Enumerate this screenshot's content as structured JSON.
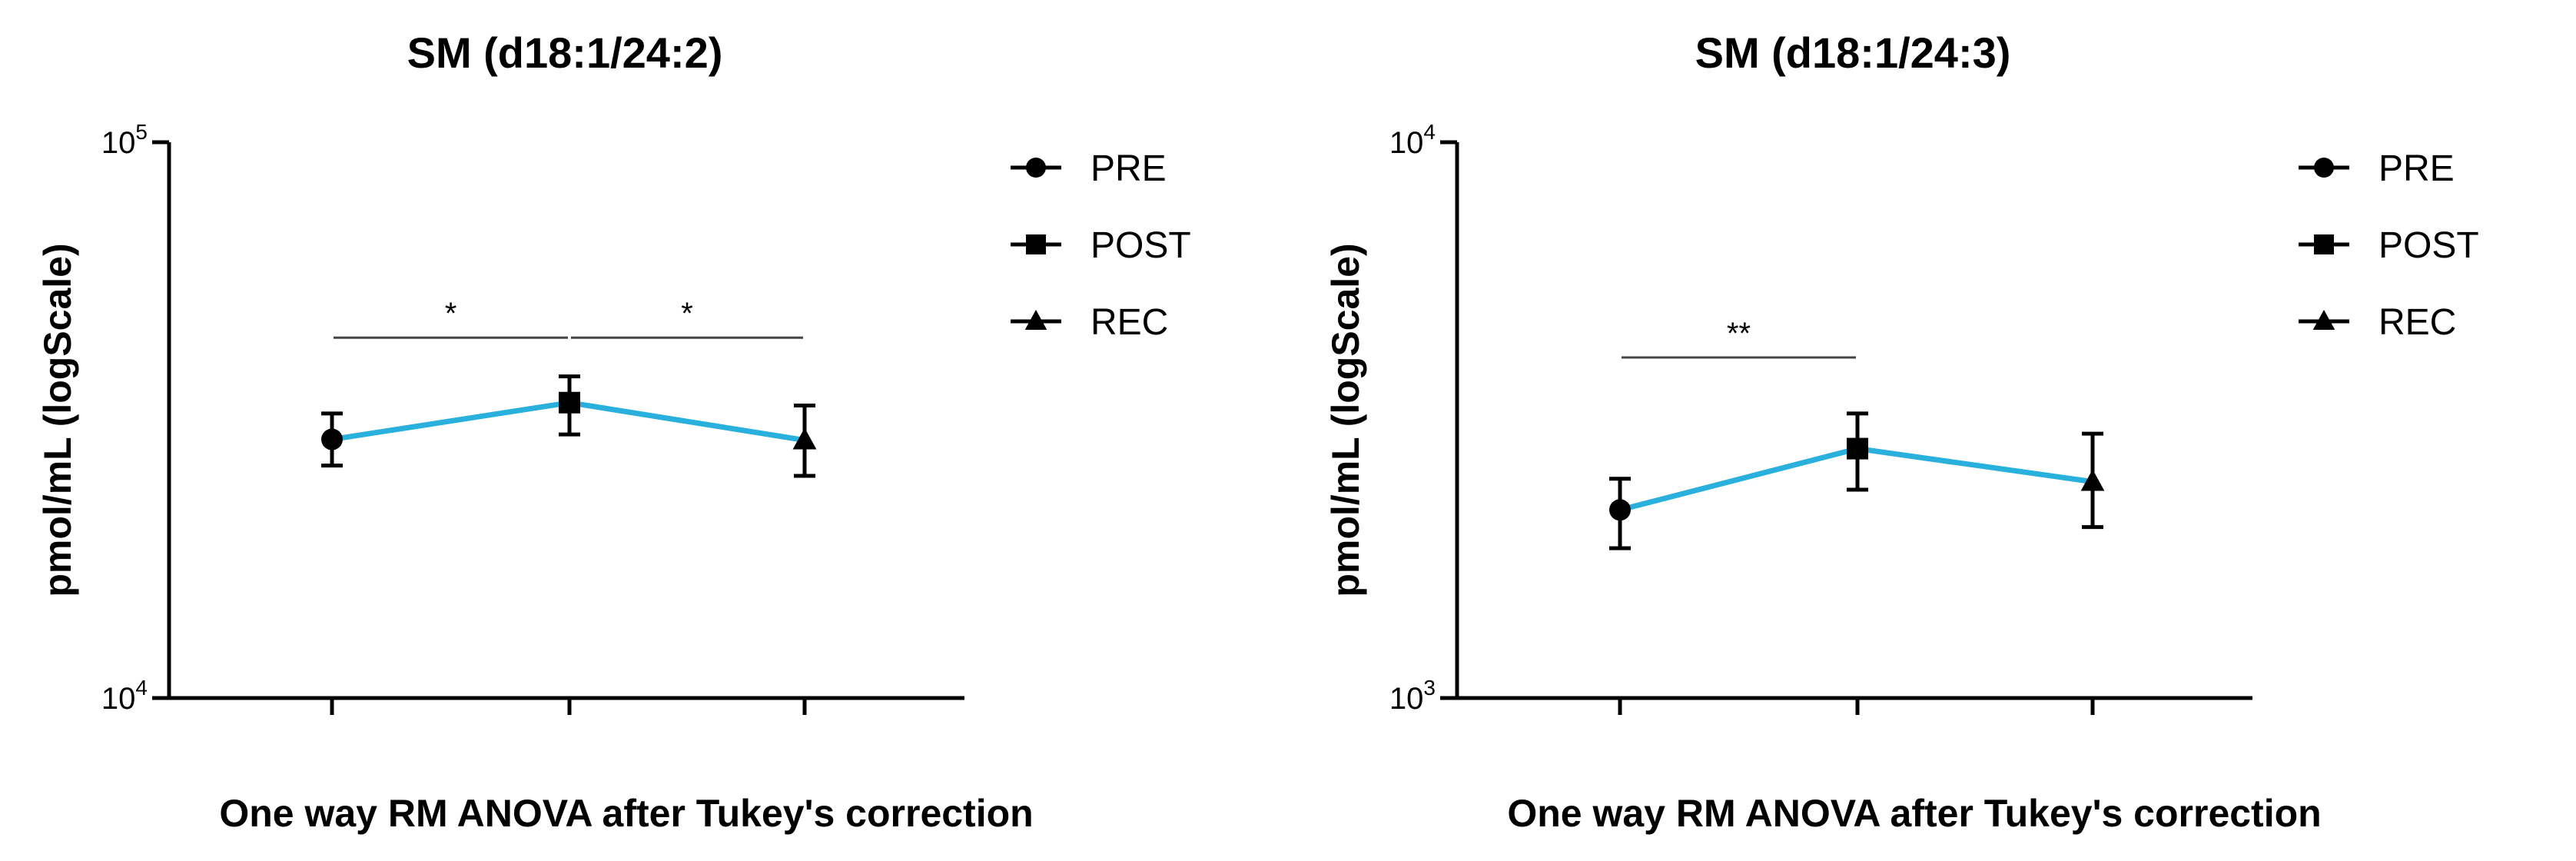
{
  "colors": {
    "line": "#29B0DC",
    "marker": "#000000",
    "axis": "#000000",
    "bracket": "#444444"
  },
  "chart_data": [
    {
      "type": "line",
      "title": "SM (d18:1/24:2)",
      "xlabel": "One way RM ANOVA after Tukey's correction",
      "ylabel": "pmol/mL (logScale)",
      "yscale": "log",
      "ylim": [
        10000,
        100000
      ],
      "ytick_labels": [
        {
          "value": 10000,
          "base": "10",
          "exp": "4"
        },
        {
          "value": 100000,
          "base": "10",
          "exp": "5"
        }
      ],
      "categories": [
        "PRE",
        "POST",
        "REC"
      ],
      "series": [
        {
          "values": [
            29200,
            34000,
            29100
          ],
          "err_low": [
            26200,
            29800,
            25100
          ],
          "err_high": [
            32500,
            37900,
            33600
          ],
          "markers": [
            "circle",
            "square",
            "triangle"
          ]
        }
      ],
      "legend": {
        "position": "top-right",
        "entries": [
          {
            "label": "PRE",
            "marker": "circle"
          },
          {
            "label": "POST",
            "marker": "square"
          },
          {
            "label": "REC",
            "marker": "triangle"
          }
        ]
      },
      "significance": [
        {
          "from": "PRE",
          "to": "POST",
          "label": "*",
          "y": 44500
        },
        {
          "from": "POST",
          "to": "REC",
          "label": "*",
          "y": 44500
        }
      ]
    },
    {
      "type": "line",
      "title": "SM (d18:1/24:3)",
      "xlabel": "One way RM ANOVA after Tukey's correction",
      "ylabel": "pmol/mL (logScale)",
      "yscale": "log",
      "ylim": [
        1000,
        10000
      ],
      "ytick_labels": [
        {
          "value": 1000,
          "base": "10",
          "exp": "3"
        },
        {
          "value": 10000,
          "base": "10",
          "exp": "4"
        }
      ],
      "categories": [
        "PRE",
        "POST",
        "REC"
      ],
      "series": [
        {
          "values": [
            2180,
            2810,
            2450
          ],
          "err_low": [
            1860,
            2370,
            2030
          ],
          "err_high": [
            2480,
            3250,
            2990
          ],
          "markers": [
            "circle",
            "square",
            "triangle"
          ]
        }
      ],
      "legend": {
        "position": "top-right",
        "entries": [
          {
            "label": "PRE",
            "marker": "circle"
          },
          {
            "label": "POST",
            "marker": "square"
          },
          {
            "label": "REC",
            "marker": "triangle"
          }
        ]
      },
      "significance": [
        {
          "from": "PRE",
          "to": "POST",
          "label": "**",
          "y": 4100
        }
      ]
    }
  ]
}
